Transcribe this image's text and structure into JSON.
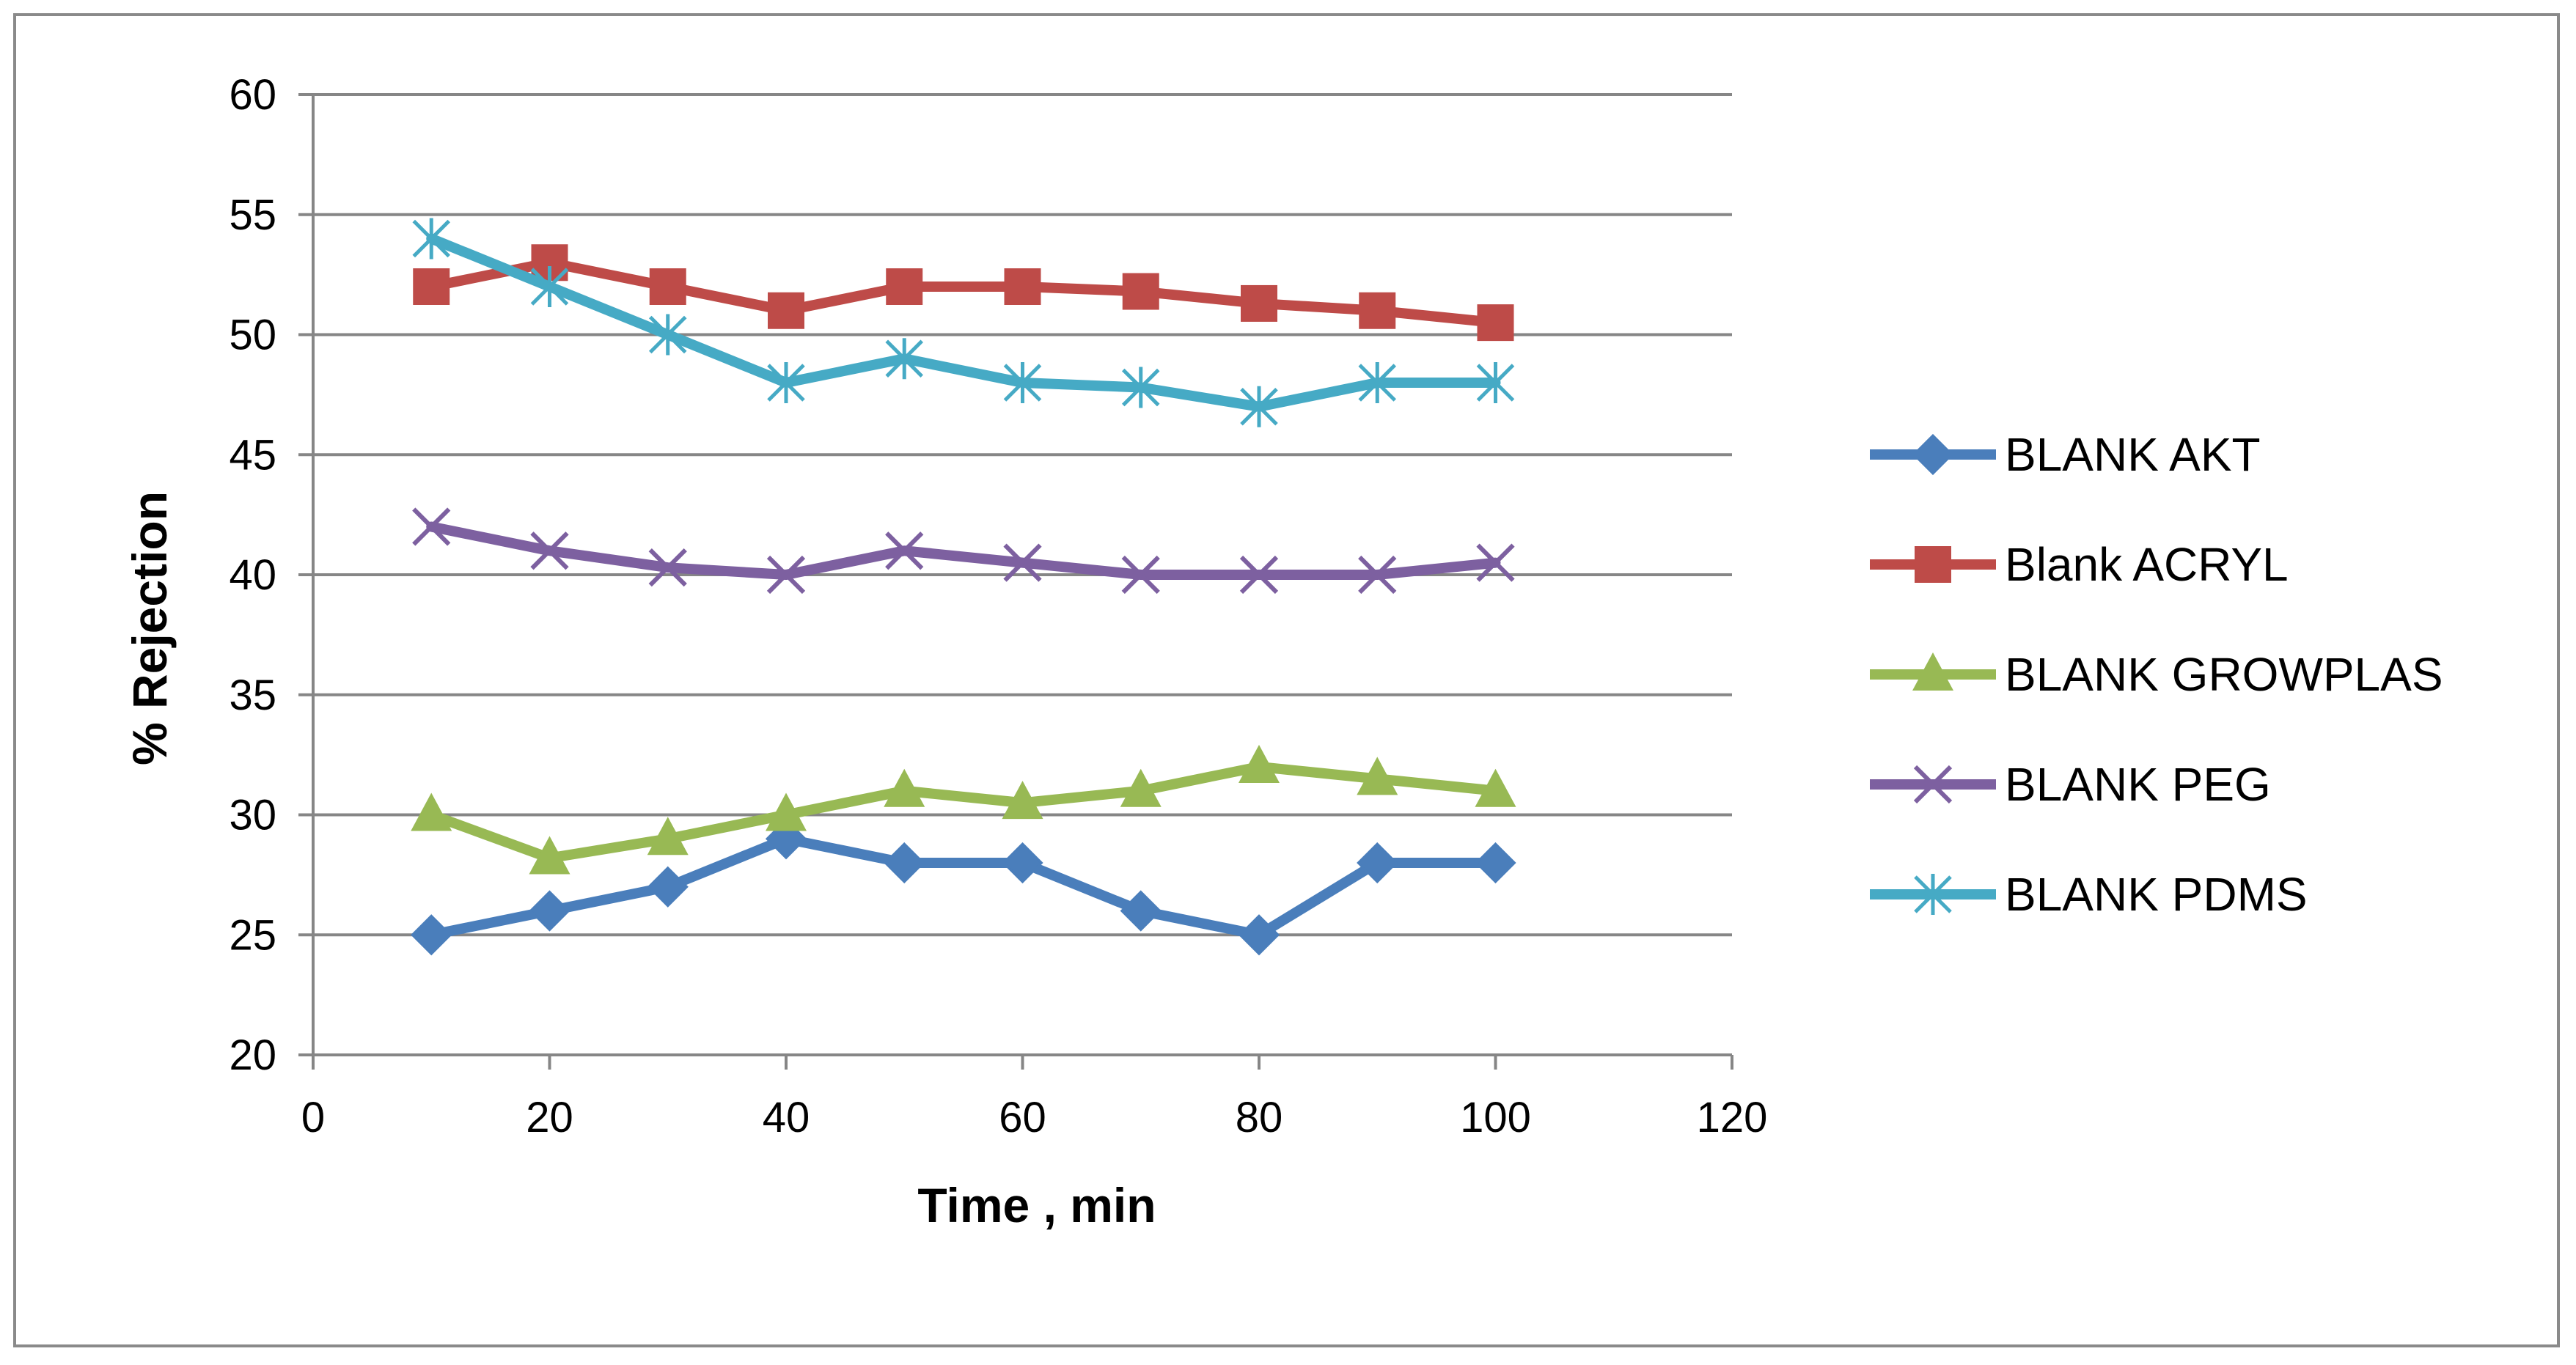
{
  "chart_data": {
    "type": "line",
    "title": "",
    "xlabel": "Time , min",
    "ylabel": "% Rejection",
    "xlim": [
      0,
      120
    ],
    "ylim": [
      20,
      60
    ],
    "xticks": [
      0,
      20,
      40,
      60,
      80,
      100,
      120
    ],
    "yticks": [
      20,
      25,
      30,
      35,
      40,
      45,
      50,
      55,
      60
    ],
    "grid": "horizontal",
    "legend_position": "right",
    "x": [
      10,
      20,
      30,
      40,
      50,
      60,
      70,
      80,
      90,
      100
    ],
    "series": [
      {
        "name": "BLANK AKT",
        "color": "#4a7ebb",
        "marker": "diamond",
        "values": [
          25,
          26,
          27,
          29,
          28,
          28,
          26,
          25,
          28,
          28
        ]
      },
      {
        "name": "Blank ACRYL",
        "color": "#be4b48",
        "marker": "square",
        "values": [
          52,
          53,
          52,
          51,
          52,
          52,
          51.8,
          51.3,
          51,
          50.5
        ]
      },
      {
        "name": "BLANK GROWPLAS",
        "color": "#98b954",
        "marker": "triangle",
        "values": [
          30,
          28.2,
          29,
          30,
          31,
          30.5,
          31,
          32,
          31.5,
          31
        ]
      },
      {
        "name": "BLANK PEG",
        "color": "#7d60a0",
        "marker": "x",
        "values": [
          42,
          41,
          40.3,
          40,
          41,
          40.5,
          40,
          40,
          40,
          40.5
        ]
      },
      {
        "name": "BLANK PDMS",
        "color": "#46aac5",
        "marker": "star",
        "values": [
          54,
          52,
          50,
          48,
          49,
          48,
          47.8,
          47,
          48,
          48
        ]
      }
    ]
  }
}
